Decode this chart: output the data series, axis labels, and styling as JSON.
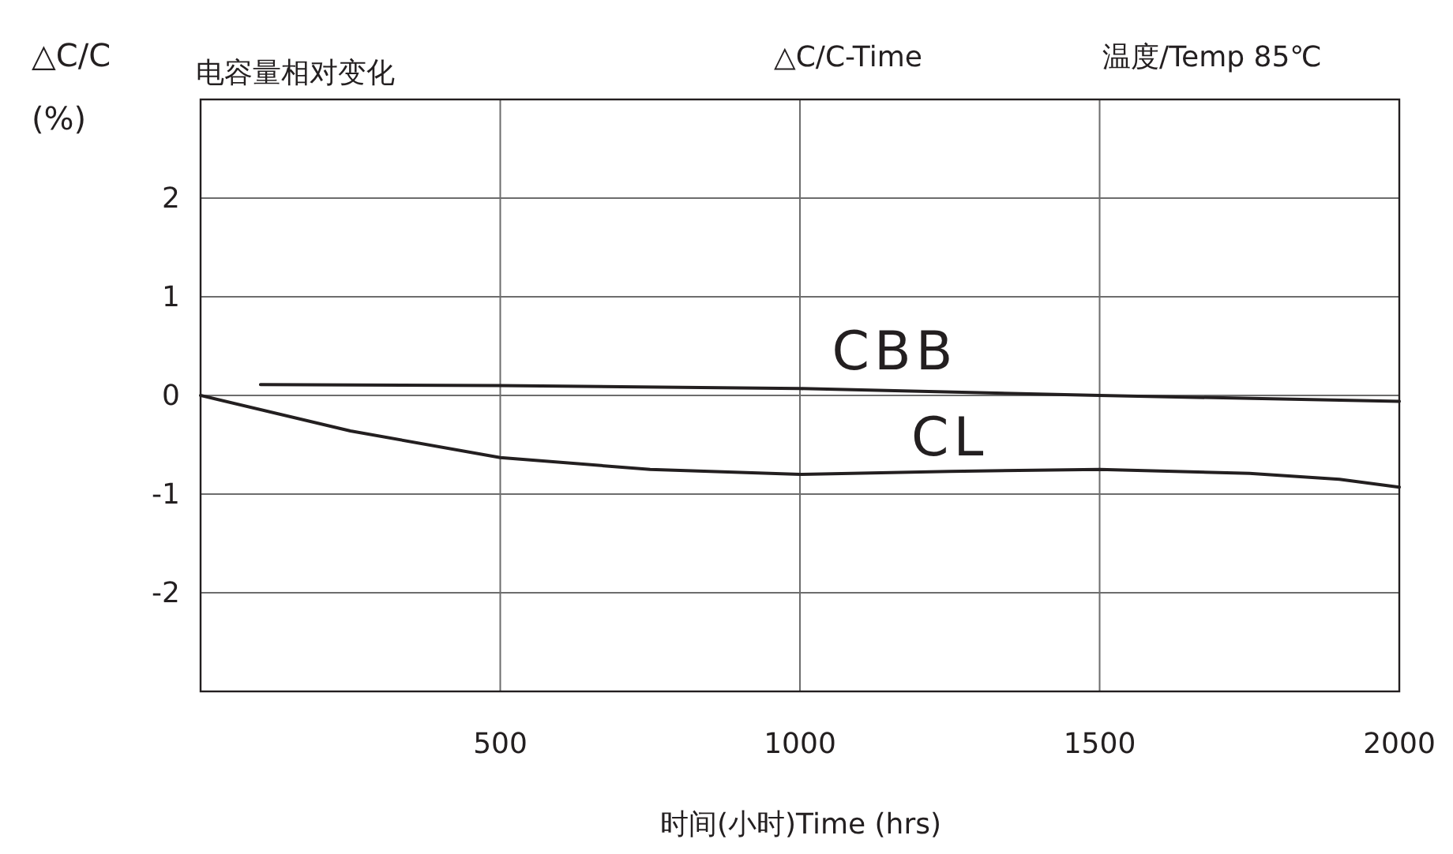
{
  "chart_data": {
    "type": "line",
    "title": "△C/C-Time",
    "subtitle": "温度/Temp 85℃",
    "xlabel": "时间(小时)Time (hrs)",
    "ylabel": "△C/C (%)",
    "annotations": [
      "电容量相对变化"
    ],
    "xlim": [
      0,
      2000
    ],
    "ylim": [
      -3,
      3
    ],
    "xticks": [
      500,
      1000,
      1500,
      2000
    ],
    "yticks": [
      -2,
      -1,
      0,
      1,
      2
    ],
    "grid": true,
    "series": [
      {
        "name": "CBB",
        "color": "#231f20",
        "x": [
          100,
          500,
          1000,
          1500,
          2000
        ],
        "values": [
          0.11,
          0.1,
          0.07,
          0.0,
          -0.06
        ]
      },
      {
        "name": "CL",
        "color": "#231f20",
        "x": [
          0,
          250,
          500,
          750,
          1000,
          1250,
          1500,
          1750,
          1900,
          2000
        ],
        "values": [
          0,
          -0.36,
          -0.63,
          -0.75,
          -0.8,
          -0.77,
          -0.75,
          -0.79,
          -0.85,
          -0.93
        ]
      }
    ]
  }
}
